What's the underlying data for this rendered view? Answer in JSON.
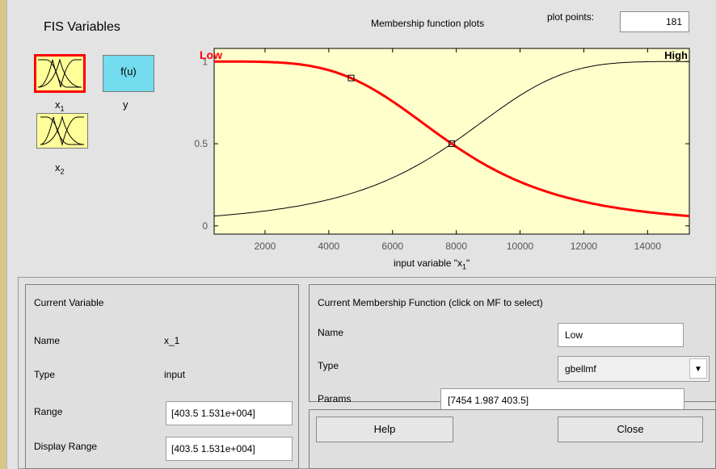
{
  "fis": {
    "title": "FIS Variables",
    "vars": [
      {
        "label": "x",
        "sub": "1"
      },
      {
        "label": "x",
        "sub": "2"
      }
    ],
    "output": {
      "icon_text": "f(u)",
      "label": "y"
    }
  },
  "plot": {
    "title": "Membership function plots",
    "plot_points_label": "plot points:",
    "plot_points_value": "181",
    "xlabel_main": "input variable \"x",
    "xlabel_sub": "1",
    "xlabel_end": "\"",
    "mf_labels": {
      "left": "Low",
      "right": "High"
    }
  },
  "chart_data": {
    "type": "line",
    "title": "",
    "xlabel": "input variable \"x_1\"",
    "ylabel": "",
    "xlim": [
      403.5,
      15310
    ],
    "ylim": [
      -0.05,
      1.08
    ],
    "xticks": [
      2000,
      4000,
      6000,
      8000,
      10000,
      12000,
      14000
    ],
    "yticks": [
      0,
      0.5,
      1
    ],
    "series": [
      {
        "name": "Low",
        "color": "#ff0000",
        "params": [
          7454,
          1.987,
          403.5
        ],
        "highlight_points": [
          [
            4700,
            0.9
          ],
          [
            7860,
            0.5
          ]
        ]
      },
      {
        "name": "High",
        "color": "#000000",
        "params": [
          7454,
          1.987,
          15310
        ]
      }
    ]
  },
  "current_variable": {
    "heading": "Current Variable",
    "name_label": "Name",
    "name_value": "x_1",
    "type_label": "Type",
    "type_value": "input",
    "range_label": "Range",
    "range_value": "[403.5 1.531e+004]",
    "display_range_label": "Display Range",
    "display_range_value": "[403.5 1.531e+004]"
  },
  "current_mf": {
    "heading": "Current Membership Function (click on MF to select)",
    "name_label": "Name",
    "name_value": "Low",
    "type_label": "Type",
    "type_value": "gbellmf",
    "params_label": "Params",
    "params_value": "[7454 1.987 403.5]"
  },
  "buttons": {
    "help": "Help",
    "close": "Close"
  },
  "colors": {
    "plot_bg": "#ffffcc",
    "selected_curve": "#ff0000",
    "var_input": "#ffff99",
    "var_output": "#73dcef"
  }
}
